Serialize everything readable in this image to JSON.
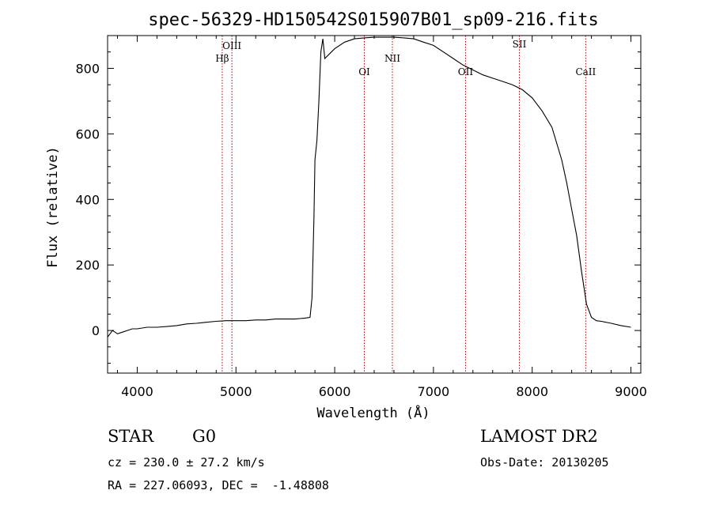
{
  "chart_data": {
    "type": "line",
    "title": "spec-56329-HD150542S015907B01_sp09-216.fits",
    "xlabel": "Wavelength (Å)",
    "ylabel": "Flux (relative)",
    "xlim": [
      3700,
      9100
    ],
    "ylim": [
      -130,
      900
    ],
    "xticks": [
      4000,
      5000,
      6000,
      7000,
      8000,
      9000
    ],
    "yticks": [
      0,
      200,
      400,
      600,
      800
    ],
    "grid": false,
    "series": [
      {
        "color": "#000000",
        "x": [
          3700,
          3750,
          3800,
          3850,
          3900,
          3950,
          4000,
          4100,
          4200,
          4300,
          4400,
          4500,
          4600,
          4700,
          4800,
          4900,
          5000,
          5100,
          5200,
          5300,
          5400,
          5500,
          5600,
          5700,
          5750,
          5770,
          5790,
          5800,
          5820,
          5840,
          5860,
          5880,
          5900,
          6000,
          6100,
          6200,
          6300,
          6400,
          6500,
          6600,
          6700,
          6800,
          6900,
          7000,
          7100,
          7200,
          7300,
          7400,
          7500,
          7600,
          7700,
          7800,
          7900,
          8000,
          8100,
          8200,
          8300,
          8350,
          8400,
          8450,
          8500,
          8550,
          8600,
          8650,
          8700,
          8800,
          8900,
          9000
        ],
        "y": [
          -20,
          0,
          -10,
          -5,
          0,
          5,
          5,
          10,
          10,
          12,
          15,
          20,
          22,
          25,
          28,
          30,
          30,
          30,
          32,
          32,
          35,
          35,
          35,
          38,
          40,
          100,
          350,
          520,
          580,
          700,
          850,
          890,
          830,
          860,
          880,
          890,
          893,
          895,
          895,
          895,
          893,
          890,
          880,
          870,
          850,
          830,
          810,
          795,
          780,
          770,
          760,
          750,
          735,
          710,
          670,
          620,
          520,
          450,
          370,
          290,
          180,
          80,
          40,
          30,
          28,
          22,
          15,
          10
        ]
      }
    ],
    "annotations": [
      {
        "label": "Hβ",
        "x": 4861,
        "line_color": "#b00000"
      },
      {
        "label": "OIII",
        "x": 4959,
        "line_color": "#b00000"
      },
      {
        "label": "OI",
        "x": 6300,
        "line_color": "#b00000"
      },
      {
        "label": "NII",
        "x": 6584,
        "line_color": "#b00000"
      },
      {
        "label": "OII",
        "x": 7325,
        "line_color": "#b00000"
      },
      {
        "label": "SII",
        "x": 7870,
        "line_color": "#b00000"
      },
      {
        "label": "CaII",
        "x": 8542,
        "line_color": "#b00000"
      }
    ]
  },
  "info": {
    "class_label": "STAR",
    "subclass": "G0",
    "survey": "LAMOST DR2",
    "cz": "cz = 230.0 ± 27.2 km/s",
    "obs_date": "Obs-Date: 20130205",
    "coords": "RA = 227.06093, DEC =  -1.48808"
  }
}
